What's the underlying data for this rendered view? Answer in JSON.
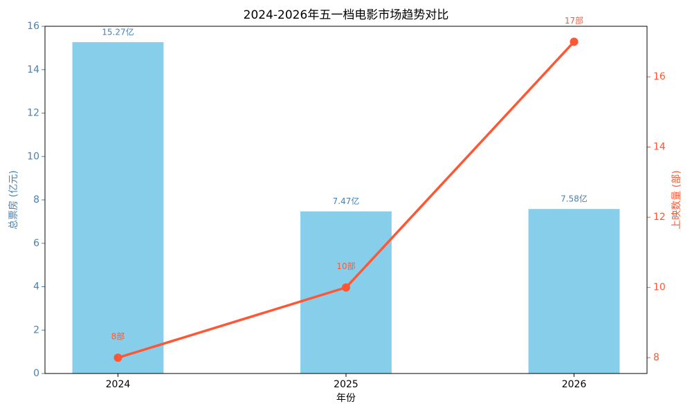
{
  "chart_data": {
    "type": "combo",
    "title": "2024-2026年五一档电影市场趋势对比",
    "xlabel": "年份",
    "ylabel": "总票房 (亿元)",
    "y2label": "上映数量 (部)",
    "categories": [
      "2024",
      "2025",
      "2026"
    ],
    "series": [
      {
        "type": "bar",
        "color": "#87ceeb",
        "label_color": "#4682b4",
        "values": [
          15.27,
          7.47,
          7.58
        ],
        "value_labels": [
          "15.27亿",
          "7.47亿",
          "7.58亿"
        ]
      },
      {
        "type": "line",
        "axis": "y2",
        "color": "#ff5733",
        "values": [
          8,
          10,
          17
        ],
        "value_labels": [
          "8部",
          "10部",
          "17部"
        ]
      }
    ],
    "ylim": [
      0,
      16
    ],
    "yticks": [
      0,
      2,
      4,
      6,
      8,
      10,
      12,
      14,
      16
    ],
    "y_color": "#4682b4",
    "y2lim": [
      7.55,
      17.44
    ],
    "y2ticks": [
      8,
      10,
      12,
      14,
      16
    ],
    "y2_color": "#ff5733"
  }
}
